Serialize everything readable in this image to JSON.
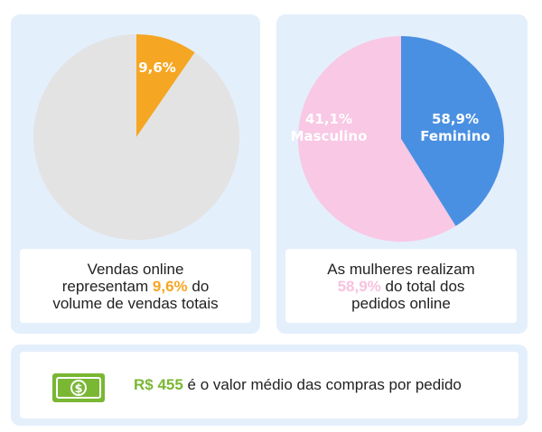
{
  "chart_data": [
    {
      "type": "pie",
      "slices": [
        {
          "label": "9,6%",
          "value": 9.6,
          "color": "#f5a623"
        },
        {
          "label": "",
          "value": 90.4,
          "color": "#e3e3e3"
        }
      ],
      "caption": {
        "line1": "Vendas online",
        "line2_before": "representam ",
        "line2_highlight": "9,6%",
        "line2_after": " do",
        "line3": "volume de vendas totais"
      }
    },
    {
      "type": "pie",
      "slices": [
        {
          "label": "41,1%",
          "sublabel": "Masculino",
          "value": 41.1,
          "color": "#4a90e2"
        },
        {
          "label": "58,9%",
          "sublabel": "Feminino",
          "value": 58.9,
          "color": "#f8c8e4"
        }
      ],
      "caption": {
        "line1": "As mulheres realizam",
        "line2_highlight": "58,9%",
        "line2_after": " do total dos",
        "line3": "pedidos online"
      }
    }
  ],
  "footer": {
    "value": "R$ 455",
    "text": " é o valor médio das compras por pedido",
    "icon": "money-icon",
    "icon_symbol": "$"
  }
}
